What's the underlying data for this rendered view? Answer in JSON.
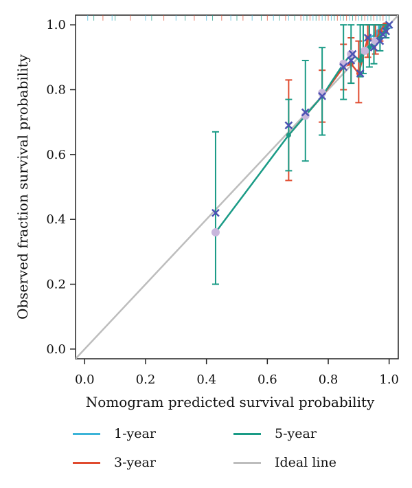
{
  "chart_data": {
    "type": "line",
    "title": "",
    "xlabel": "Nomogram predicted survival probability",
    "ylabel": "Observed fraction survival probability",
    "xlim": [
      -0.03,
      1.03
    ],
    "ylim": [
      -0.03,
      1.03
    ],
    "x_ticks": [
      "0.0",
      "0.2",
      "0.4",
      "0.6",
      "0.8",
      "1.0"
    ],
    "y_ticks": [
      "0.0",
      "0.2",
      "0.4",
      "0.6",
      "0.8",
      "1.0"
    ],
    "grid": false,
    "legend_position": "bottom",
    "rug_positions_x": [
      0.01,
      0.03,
      0.06,
      0.09,
      0.1,
      0.15,
      0.2,
      0.22,
      0.26,
      0.3,
      0.33,
      0.36,
      0.4,
      0.42,
      0.45,
      0.48,
      0.5,
      0.52,
      0.55,
      0.58,
      0.6,
      0.62,
      0.64,
      0.66,
      0.67,
      0.69,
      0.71,
      0.72,
      0.73,
      0.74,
      0.75,
      0.76,
      0.77,
      0.78,
      0.79,
      0.8,
      0.81,
      0.82,
      0.83,
      0.84,
      0.85,
      0.86,
      0.87,
      0.88,
      0.89,
      0.9,
      0.91,
      0.92,
      0.93,
      0.94,
      0.95,
      0.96,
      0.97,
      0.98,
      0.99,
      1.0
    ],
    "series": [
      {
        "name": "1-year",
        "color": "#3cb4d8",
        "x": [
          0.935,
          0.955,
          0.965,
          0.975,
          0.985,
          0.995
        ],
        "y": [
          0.96,
          0.97,
          0.98,
          0.99,
          1.0,
          1.0
        ],
        "err_low": [
          0.93,
          0.95,
          0.96,
          0.97,
          0.98,
          0.99
        ],
        "err_high": [
          1.0,
          1.0,
          1.0,
          1.0,
          1.0,
          1.0
        ]
      },
      {
        "name": "3-year",
        "color": "#e04b2f",
        "x": [
          0.67,
          0.78,
          0.85,
          0.875,
          0.9,
          0.93,
          0.955,
          0.97,
          0.985
        ],
        "y": [
          0.66,
          0.78,
          0.87,
          0.88,
          0.85,
          0.96,
          0.95,
          0.98,
          1.0
        ],
        "err_low": [
          0.52,
          0.7,
          0.8,
          0.82,
          0.76,
          0.9,
          0.91,
          0.95,
          0.98
        ],
        "err_high": [
          0.83,
          0.86,
          0.94,
          0.96,
          0.95,
          1.0,
          1.0,
          1.0,
          1.0
        ]
      },
      {
        "name": "5-year",
        "color": "#1a9b86",
        "x": [
          0.43,
          0.67,
          0.725,
          0.78,
          0.85,
          0.875,
          0.905,
          0.915,
          0.935,
          0.95,
          0.97,
          0.99
        ],
        "y": [
          0.36,
          0.66,
          0.72,
          0.78,
          0.88,
          0.91,
          0.89,
          0.92,
          0.93,
          0.94,
          0.96,
          0.99
        ],
        "err_low": [
          0.2,
          0.55,
          0.58,
          0.66,
          0.77,
          0.82,
          0.84,
          0.85,
          0.87,
          0.88,
          0.92,
          0.96
        ],
        "err_high": [
          0.67,
          0.77,
          0.89,
          0.93,
          1.0,
          1.0,
          1.0,
          1.0,
          1.0,
          1.0,
          1.0,
          1.0
        ]
      },
      {
        "name": "Ideal line",
        "color": "#bdbdbd",
        "x": [
          -0.03,
          1.03
        ],
        "y": [
          -0.03,
          1.03
        ]
      }
    ],
    "markers": {
      "observed_points_x": [
        0.43,
        0.67,
        0.725,
        0.78,
        0.85,
        0.875,
        0.88,
        0.905,
        0.93,
        0.95,
        0.97,
        0.98,
        0.99,
        1.0
      ],
      "observed_points_y": [
        0.42,
        0.69,
        0.73,
        0.78,
        0.87,
        0.89,
        0.91,
        0.85,
        0.96,
        0.93,
        0.95,
        0.97,
        0.98,
        1.0
      ],
      "marker_color": "#4c52b2",
      "predicted_points_x": [
        0.43,
        0.725,
        0.78,
        0.85,
        0.875,
        0.92,
        0.955
      ],
      "predicted_points_y": [
        0.36,
        0.72,
        0.79,
        0.88,
        0.91,
        0.92,
        0.95
      ],
      "predicted_color": "#c8b6dc"
    }
  },
  "legend": {
    "items": [
      {
        "label": "1-year",
        "color": "#3cb4d8"
      },
      {
        "label": "5-year",
        "color": "#1a9b86"
      },
      {
        "label": "3-year",
        "color": "#e04b2f"
      },
      {
        "label": "Ideal line",
        "color": "#bdbdbd"
      }
    ]
  }
}
